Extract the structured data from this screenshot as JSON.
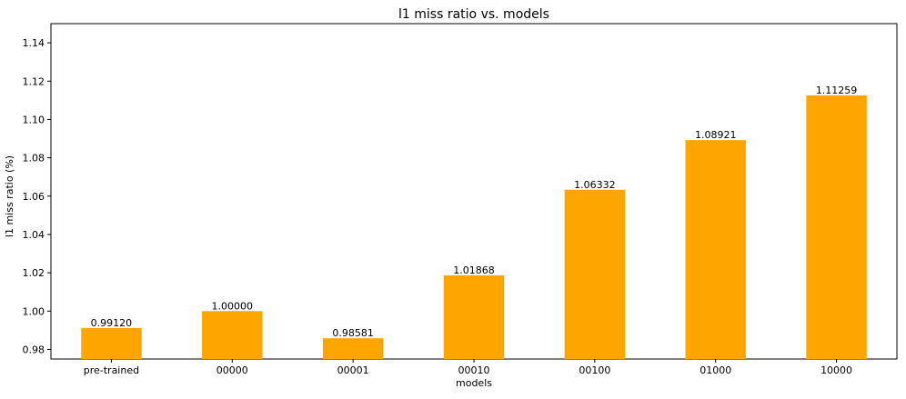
{
  "chart_data": {
    "type": "bar",
    "title": "l1 miss ratio vs. models",
    "xlabel": "models",
    "ylabel": "l1 miss ratio (%)",
    "categories": [
      "pre-trained",
      "00000",
      "00001",
      "00010",
      "00100",
      "01000",
      "10000"
    ],
    "values": [
      0.9912,
      1.0,
      0.98581,
      1.01868,
      1.06332,
      1.08921,
      1.11259
    ],
    "data_labels": [
      "0.99120",
      "1.00000",
      "0.98581",
      "1.01868",
      "1.06332",
      "1.08921",
      "1.11259"
    ],
    "ylim": [
      0.975,
      1.15
    ],
    "yticks": [
      0.98,
      1.0,
      1.02,
      1.04,
      1.06,
      1.08,
      1.1,
      1.12,
      1.14
    ],
    "ytick_labels": [
      "0.98",
      "1.00",
      "1.02",
      "1.04",
      "1.06",
      "1.08",
      "1.10",
      "1.12",
      "1.14"
    ],
    "bar_color": "#FFA500",
    "grid": false,
    "legend": "none"
  }
}
